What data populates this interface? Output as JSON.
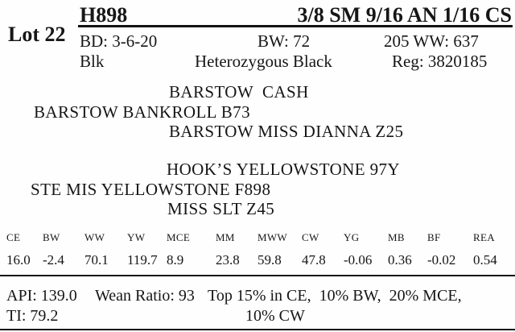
{
  "lot": {
    "label": "Lot 22"
  },
  "header": {
    "tag": "H898",
    "breed": "3/8 SM 9/16 AN 1/16 CS",
    "birth_date": "BD: 3-6-20",
    "birth_weight": "BW: 72",
    "adj_wean_weight": "205 WW: 637",
    "color": "Blk",
    "genotype": "Heterozygous Black",
    "registration": "Reg: 3820185"
  },
  "pedigree": {
    "sire_sire": "BARSTOW  CASH",
    "sire": "BARSTOW BANKROLL B73",
    "sire_dam": "BARSTOW MISS DIANNA Z25",
    "dam_sire": "HOOK’S YELLOWSTONE 97Y",
    "dam": "STE MIS YELLOWSTONE F898",
    "dam_dam": "MISS SLT Z45"
  },
  "epd": {
    "columns": [
      {
        "label": "CE",
        "value": "16.0"
      },
      {
        "label": "BW",
        "value": "-2.4"
      },
      {
        "label": "WW",
        "value": "70.1"
      },
      {
        "label": "YW",
        "value": "119.7"
      },
      {
        "label": "MCE",
        "value": "8.9"
      },
      {
        "label": "MM",
        "value": "23.8"
      },
      {
        "label": "MWW",
        "value": "59.8"
      },
      {
        "label": "CW",
        "value": "47.8"
      },
      {
        "label": "YG",
        "value": "-0.06"
      },
      {
        "label": "MB",
        "value": "0.36"
      },
      {
        "label": "BF",
        "value": "-0.02"
      },
      {
        "label": "REA",
        "value": "0.54"
      }
    ]
  },
  "footer": {
    "api": "API: 139.0",
    "wean_ratio": "Wean Ratio: 93",
    "rank_line1": "Top 15% in CE,  10% BW,  20% MCE,",
    "ti": "TI: 79.2",
    "rank_line2": "10% CW"
  }
}
